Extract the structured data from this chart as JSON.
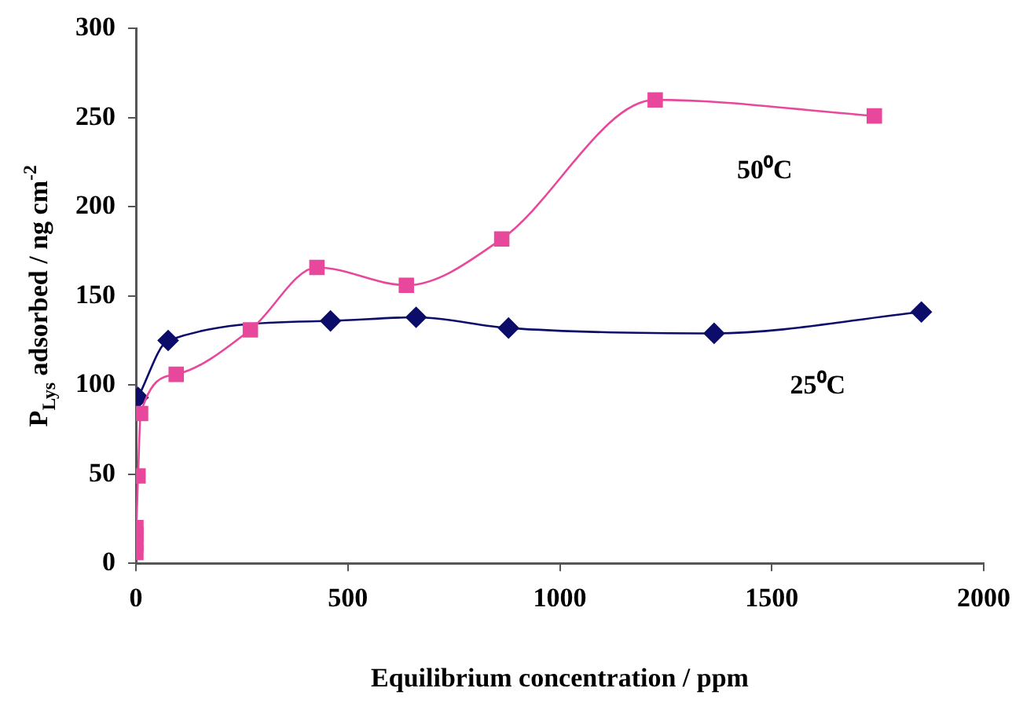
{
  "chart_data": {
    "type": "line",
    "xlabel": "Equilibrium concentration / ppm",
    "ylabel": "P$_{Lys}$ adsorbed / ng cm$^{-2}$",
    "xlim": [
      0,
      2000
    ],
    "xticks": [
      0,
      500,
      1000,
      1500,
      2000
    ],
    "ylim": [
      0,
      300
    ],
    "yticks": [
      0,
      50,
      100,
      150,
      200,
      250,
      300
    ],
    "grid": false,
    "legend": false,
    "series": [
      {
        "name": "50⁰C",
        "color": "#e8489c",
        "marker": "square",
        "x": [
          0,
          0,
          0,
          0,
          5,
          11,
          95,
          270,
          427,
          638,
          863,
          1225,
          1742
        ],
        "values": [
          6,
          11,
          16,
          20,
          49,
          84,
          106,
          131,
          166,
          156,
          182,
          260,
          251
        ]
      },
      {
        "name": "25⁰C",
        "color": "#0c0c6a",
        "marker": "diamond",
        "x": [
          5,
          76,
          459,
          661,
          879,
          1364,
          1853
        ],
        "values": [
          93,
          125,
          136,
          138,
          132,
          129,
          141
        ]
      }
    ]
  }
}
